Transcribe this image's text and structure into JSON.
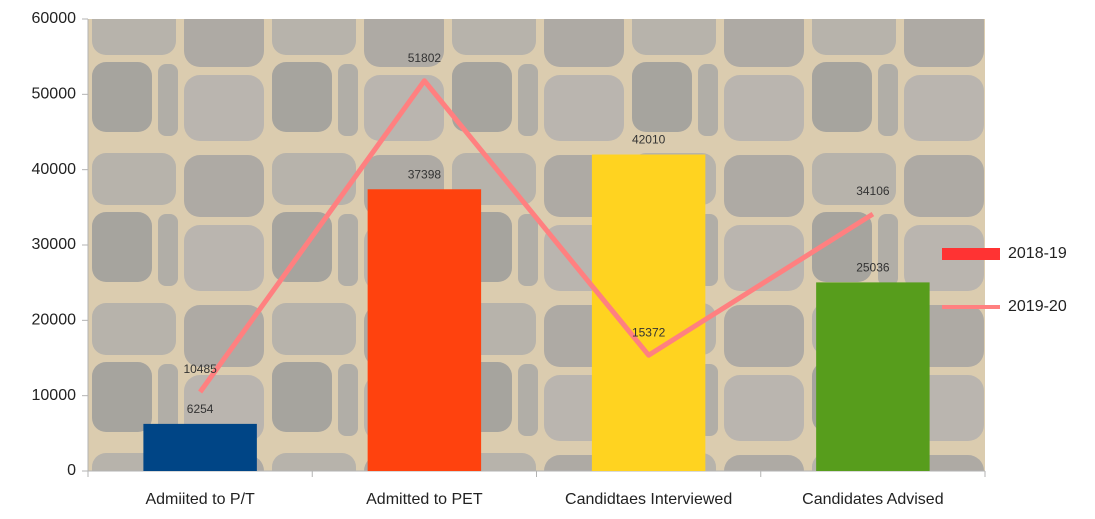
{
  "chart_data": {
    "type": "bar",
    "categories": [
      "Admiited to P/T",
      "Admitted to PET",
      "Candidtaes Interviewed",
      "Candidates Advised"
    ],
    "series": [
      {
        "name": "2018-19",
        "type": "bar",
        "color": "#ff3333",
        "colors": [
          "#004586",
          "#ff420e",
          "#ffd320",
          "#579d1c"
        ],
        "values": [
          6254,
          37398,
          42010,
          25036
        ]
      },
      {
        "name": "2019-20",
        "type": "line",
        "color": "#ff8080",
        "values": [
          10485,
          51802,
          15372,
          34106
        ]
      }
    ],
    "ylim": [
      0,
      60000
    ],
    "yticks": [
      0,
      10000,
      20000,
      30000,
      40000,
      50000,
      60000
    ],
    "grid": false,
    "legend": "right"
  }
}
